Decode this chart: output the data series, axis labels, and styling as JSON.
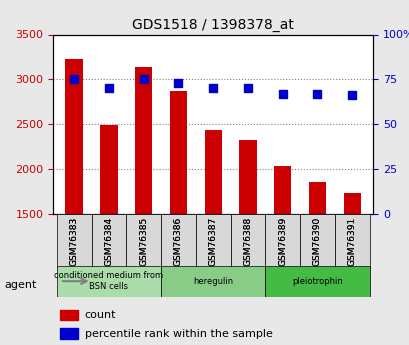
{
  "title": "GDS1518 / 1398378_at",
  "samples": [
    "GSM76383",
    "GSM76384",
    "GSM76385",
    "GSM76386",
    "GSM76387",
    "GSM76388",
    "GSM76389",
    "GSM76390",
    "GSM76391"
  ],
  "counts": [
    3230,
    2490,
    3140,
    2870,
    2430,
    2320,
    2030,
    1860,
    1730
  ],
  "percentiles": [
    75,
    70,
    75,
    73,
    70,
    70,
    67,
    67,
    66
  ],
  "ylim_left": [
    1500,
    3500
  ],
  "ylim_right": [
    0,
    100
  ],
  "left_ticks": [
    1500,
    2000,
    2500,
    3000,
    3500
  ],
  "right_ticks": [
    0,
    25,
    50,
    75,
    100
  ],
  "bar_color": "#cc0000",
  "dot_color": "#0000cc",
  "groups": [
    {
      "label": "conditioned medium from\nBSN cells",
      "start": 0,
      "end": 3,
      "color": "#aaffaa"
    },
    {
      "label": "heregulin",
      "start": 3,
      "end": 6,
      "color": "#88ee88"
    },
    {
      "label": "pleiotrophin",
      "start": 6,
      "end": 9,
      "color": "#44dd44"
    }
  ],
  "agent_label": "agent",
  "legend_count_label": "count",
  "legend_pct_label": "percentile rank within the sample",
  "background_color": "#f0f0f0",
  "plot_bg_color": "#ffffff",
  "title_color": "#000000",
  "left_tick_color": "#cc0000",
  "right_tick_color": "#0000cc"
}
